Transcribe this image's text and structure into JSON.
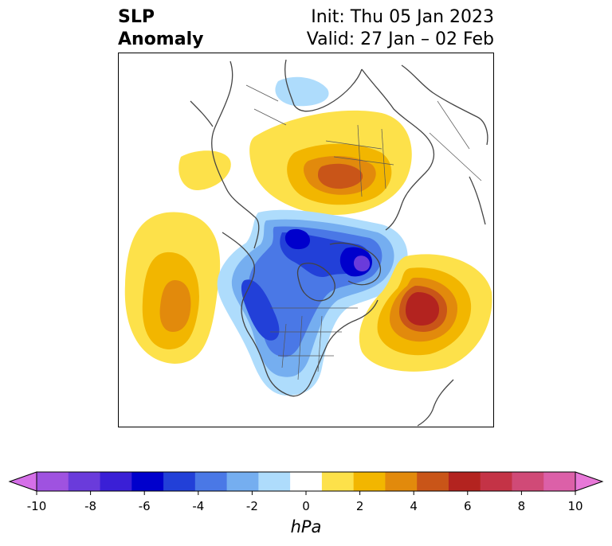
{
  "title": {
    "left_line1": "SLP",
    "left_line2": "Anomaly",
    "init": "Init: Thu 05 Jan 2023",
    "valid": "Valid: 27 Jan – 02 Feb"
  },
  "colorbar": {
    "unit": "hPa",
    "ticks": [
      "-10",
      "-8",
      "-6",
      "-4",
      "-2",
      "0",
      "2",
      "4",
      "6",
      "8",
      "10"
    ],
    "colors": [
      "#d56fe8",
      "#9f52e0",
      "#6a3bdb",
      "#3a1fd6",
      "#0000cc",
      "#2240d8",
      "#4a78e6",
      "#75aef0",
      "#aedcfc",
      "#ffffff",
      "#fde14a",
      "#f2b600",
      "#e28a0c",
      "#c95518",
      "#b3231f",
      "#c43346",
      "#d04a77",
      "#dc60a8",
      "#e878d8"
    ]
  },
  "map": {
    "anomaly_colors": {
      "neg1": "#aedcfc",
      "neg2": "#75aef0",
      "neg3": "#4a78e6",
      "neg4": "#2240d8",
      "neg5": "#0000cc",
      "neg6": "#6a3bdb",
      "pos1": "#fde14a",
      "pos2": "#f2b600",
      "pos3": "#e28a0c",
      "pos4": "#c95518",
      "pos5": "#b3231f"
    }
  }
}
